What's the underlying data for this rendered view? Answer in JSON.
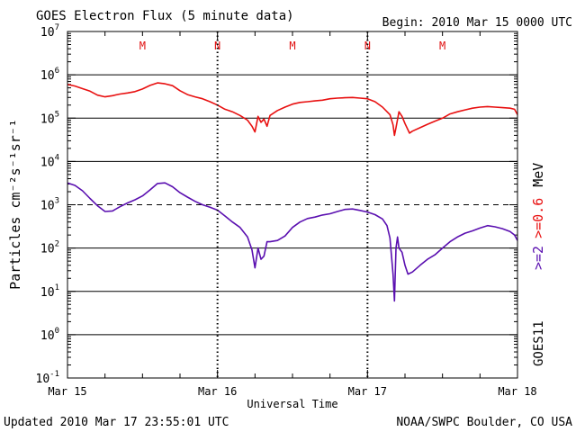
{
  "header": {
    "title": "GOES Electron Flux (5 minute data)",
    "begin": "Begin: 2010 Mar 15 0000 UTC"
  },
  "footer": {
    "updated": "Updated 2010 Mar 17 23:55:01 UTC",
    "credit": "NOAA/SWPC Boulder, CO USA"
  },
  "chart_data": {
    "type": "line",
    "title": "GOES Electron Flux (5 minute data)",
    "xlabel": "Universal Time",
    "ylabel": "Particles cm⁻²s⁻¹sr⁻¹",
    "yscale": "log",
    "ylim": [
      0.1,
      10000000
    ],
    "xlim": [
      0,
      3
    ],
    "x_ticks": [
      {
        "value": 0,
        "label": "Mar 15"
      },
      {
        "value": 1,
        "label": "Mar 16"
      },
      {
        "value": 2,
        "label": "Mar 17"
      },
      {
        "value": 3,
        "label": "Mar 18"
      }
    ],
    "y_ticks": [
      {
        "exp": 7,
        "label": "10",
        "sup": "7"
      },
      {
        "exp": 6,
        "label": "10",
        "sup": "6"
      },
      {
        "exp": 5,
        "label": "10",
        "sup": "5"
      },
      {
        "exp": 4,
        "label": "10",
        "sup": "4"
      },
      {
        "exp": 3,
        "label": "10",
        "sup": "3"
      },
      {
        "exp": 2,
        "label": "10",
        "sup": "2"
      },
      {
        "exp": 1,
        "label": "10",
        "sup": "1"
      },
      {
        "exp": 0,
        "label": "10",
        "sup": "0"
      },
      {
        "exp": -1,
        "label": "10",
        "sup": "-1"
      }
    ],
    "solid_gridlines": [
      6,
      5,
      4,
      2,
      1,
      0
    ],
    "dashed_gridlines": [
      3
    ],
    "noon_midnight_markers": [
      {
        "x": 0.5,
        "label": "M"
      },
      {
        "x": 1.0,
        "label": "N"
      },
      {
        "x": 1.5,
        "label": "M"
      },
      {
        "x": 2.0,
        "label": "N"
      },
      {
        "x": 2.5,
        "label": "M"
      }
    ],
    "right_labels": {
      "energy_26": ">=2",
      "energy_06": ">=0.6",
      "unit": "MeV",
      "satellite": "GOES11"
    },
    "series": [
      {
        "name": ">=0.6 MeV",
        "color": "#e81010",
        "x": [
          0,
          0.05,
          0.1,
          0.15,
          0.2,
          0.25,
          0.3,
          0.35,
          0.4,
          0.45,
          0.5,
          0.55,
          0.6,
          0.65,
          0.7,
          0.75,
          0.8,
          0.85,
          0.9,
          0.95,
          1.0,
          1.05,
          1.1,
          1.15,
          1.2,
          1.23,
          1.25,
          1.27,
          1.29,
          1.31,
          1.33,
          1.35,
          1.4,
          1.45,
          1.5,
          1.55,
          1.6,
          1.65,
          1.7,
          1.75,
          1.8,
          1.85,
          1.9,
          1.95,
          2.0,
          2.05,
          2.1,
          2.15,
          2.17,
          2.18,
          2.19,
          2.21,
          2.23,
          2.25,
          2.28,
          2.3,
          2.35,
          2.4,
          2.45,
          2.5,
          2.55,
          2.6,
          2.65,
          2.7,
          2.75,
          2.8,
          2.85,
          2.9,
          2.95,
          2.98,
          3.0
        ],
        "values": [
          600000,
          550000,
          480000,
          420000,
          340000,
          310000,
          330000,
          360000,
          380000,
          410000,
          470000,
          570000,
          650000,
          620000,
          560000,
          430000,
          350000,
          310000,
          280000,
          240000,
          200000,
          160000,
          140000,
          115000,
          90000,
          65000,
          48000,
          110000,
          80000,
          95000,
          65000,
          115000,
          150000,
          180000,
          210000,
          230000,
          240000,
          250000,
          260000,
          280000,
          290000,
          295000,
          300000,
          290000,
          280000,
          240000,
          180000,
          120000,
          70000,
          40000,
          60000,
          140000,
          110000,
          75000,
          45000,
          50000,
          60000,
          72000,
          85000,
          100000,
          125000,
          140000,
          155000,
          170000,
          180000,
          185000,
          180000,
          175000,
          170000,
          160000,
          120000
        ]
      },
      {
        "name": ">=2 MeV",
        "color": "#5a0fb0",
        "x": [
          0,
          0.05,
          0.1,
          0.15,
          0.2,
          0.25,
          0.3,
          0.35,
          0.4,
          0.45,
          0.5,
          0.55,
          0.6,
          0.65,
          0.7,
          0.75,
          0.8,
          0.85,
          0.9,
          0.95,
          1.0,
          1.05,
          1.1,
          1.15,
          1.2,
          1.23,
          1.25,
          1.27,
          1.29,
          1.31,
          1.33,
          1.35,
          1.4,
          1.45,
          1.5,
          1.55,
          1.6,
          1.65,
          1.7,
          1.75,
          1.8,
          1.85,
          1.9,
          1.95,
          2.0,
          2.05,
          2.1,
          2.13,
          2.15,
          2.17,
          2.18,
          2.19,
          2.2,
          2.21,
          2.23,
          2.25,
          2.27,
          2.3,
          2.35,
          2.4,
          2.45,
          2.5,
          2.55,
          2.6,
          2.65,
          2.7,
          2.75,
          2.8,
          2.85,
          2.9,
          2.95,
          2.98,
          3.0
        ],
        "values": [
          3200,
          2800,
          2100,
          1400,
          950,
          700,
          720,
          900,
          1100,
          1300,
          1600,
          2200,
          3100,
          3200,
          2600,
          1900,
          1500,
          1200,
          1000,
          880,
          750,
          550,
          400,
          300,
          180,
          90,
          35,
          100,
          55,
          65,
          140,
          140,
          150,
          190,
          300,
          400,
          480,
          520,
          580,
          620,
          700,
          780,
          800,
          740,
          680,
          590,
          470,
          330,
          170,
          25,
          6,
          100,
          180,
          100,
          80,
          40,
          25,
          28,
          40,
          55,
          70,
          100,
          140,
          180,
          220,
          250,
          290,
          330,
          310,
          280,
          240,
          200,
          150
        ]
      }
    ]
  }
}
